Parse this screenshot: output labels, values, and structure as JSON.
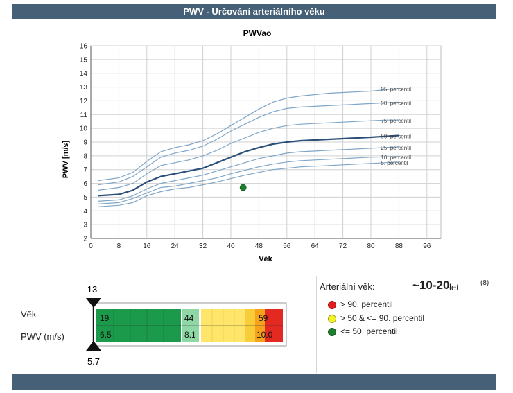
{
  "header": {
    "title": "PWV - Určování arteriálního věku"
  },
  "chart_data": {
    "type": "line",
    "title": "PWVao",
    "xlabel": "Věk",
    "ylabel": "PWV [m/s]",
    "xlim": [
      0,
      100
    ],
    "ylim": [
      2,
      16
    ],
    "x_ticks": [
      0,
      8,
      16,
      24,
      32,
      40,
      48,
      56,
      64,
      72,
      80,
      88,
      96
    ],
    "y_ticks": [
      2,
      3,
      4,
      5,
      6,
      7,
      8,
      9,
      10,
      11,
      12,
      13,
      14,
      15,
      16
    ],
    "grid": true,
    "x": [
      2,
      8,
      12,
      16,
      20,
      24,
      28,
      32,
      36,
      40,
      44,
      48,
      52,
      56,
      60,
      64,
      68,
      72,
      76,
      80,
      84,
      88
    ],
    "series": [
      {
        "name": "95. percentil",
        "values": [
          6.2,
          6.4,
          6.8,
          7.6,
          8.3,
          8.6,
          8.8,
          9.1,
          9.6,
          10.2,
          10.8,
          11.4,
          11.9,
          12.2,
          12.35,
          12.45,
          12.55,
          12.6,
          12.65,
          12.7,
          12.8,
          12.9
        ]
      },
      {
        "name": "90. percentil",
        "values": [
          5.9,
          6.1,
          6.5,
          7.2,
          7.9,
          8.2,
          8.4,
          8.7,
          9.2,
          9.8,
          10.3,
          10.8,
          11.2,
          11.45,
          11.55,
          11.6,
          11.65,
          11.7,
          11.75,
          11.8,
          11.85,
          11.9
        ]
      },
      {
        "name": "75. percentil",
        "values": [
          5.5,
          5.7,
          6.0,
          6.7,
          7.3,
          7.5,
          7.7,
          8.0,
          8.4,
          8.9,
          9.3,
          9.7,
          10.0,
          10.2,
          10.3,
          10.35,
          10.4,
          10.45,
          10.5,
          10.55,
          10.6,
          10.6
        ]
      },
      {
        "name": "50. percentil",
        "values": [
          5.1,
          5.2,
          5.5,
          6.1,
          6.5,
          6.7,
          6.9,
          7.1,
          7.5,
          7.9,
          8.3,
          8.6,
          8.85,
          9.0,
          9.1,
          9.15,
          9.2,
          9.25,
          9.3,
          9.35,
          9.42,
          9.48
        ]
      },
      {
        "name": "25. percentil",
        "values": [
          4.7,
          4.8,
          5.1,
          5.6,
          6.0,
          6.2,
          6.4,
          6.6,
          6.9,
          7.2,
          7.5,
          7.8,
          8.0,
          8.2,
          8.3,
          8.35,
          8.4,
          8.45,
          8.5,
          8.55,
          8.6,
          8.65
        ]
      },
      {
        "name": "10. percentil",
        "values": [
          4.5,
          4.6,
          4.9,
          5.3,
          5.7,
          5.8,
          6.0,
          6.2,
          6.4,
          6.7,
          6.95,
          7.2,
          7.4,
          7.55,
          7.65,
          7.7,
          7.75,
          7.8,
          7.85,
          7.9,
          7.92,
          7.95
        ]
      },
      {
        "name": "5. percentil",
        "values": [
          4.3,
          4.4,
          4.6,
          5.1,
          5.4,
          5.6,
          5.7,
          5.9,
          6.1,
          6.35,
          6.6,
          6.8,
          7.0,
          7.1,
          7.2,
          7.25,
          7.3,
          7.35,
          7.4,
          7.45,
          7.5,
          7.55
        ]
      }
    ],
    "highlight_series": "50. percentil",
    "point": {
      "x": 43.5,
      "y": 5.7,
      "color": "#1e7d2e"
    }
  },
  "gauge": {
    "marker_top": "13",
    "marker_bottom": "5.7",
    "row_labels": [
      "Věk",
      "PWV (m/s)"
    ],
    "age_values": [
      "19",
      "44",
      "59"
    ],
    "pwv_values": [
      "6.5",
      "8.1",
      "10.0"
    ],
    "colors": {
      "green": "#1a9a4a",
      "lightgreen": "#8fd8a6",
      "yellow": "#ffe66a",
      "orange": "#f5a31c",
      "red": "#e32a22"
    }
  },
  "legend": {
    "heading": "Arteriální věk:",
    "age_value": "~10-20",
    "age_unit": "let",
    "note": "(8)",
    "items": [
      {
        "color": "#e02020",
        "label": "> 90. percentil"
      },
      {
        "color": "#f3f32a",
        "label": "> 50 & <= 90. percentil"
      },
      {
        "color": "#1e7d2e",
        "label": "<= 50. percentil"
      }
    ]
  }
}
